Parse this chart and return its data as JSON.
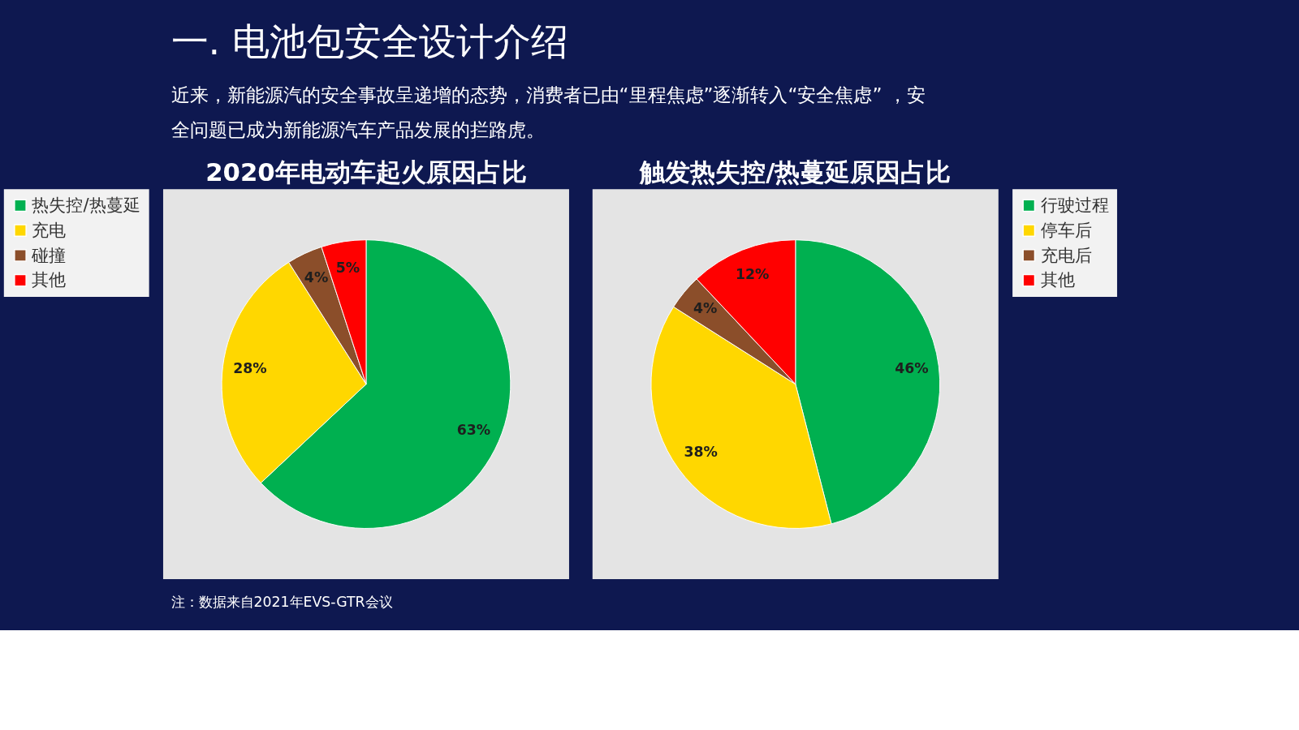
{
  "chart_data": [
    {
      "type": "pie",
      "title": "2020年电动车起火原因占比",
      "categories": [
        "热失控/热蔓延",
        "充电",
        "碰撞",
        "其他"
      ],
      "values": [
        63,
        28,
        4,
        5
      ],
      "colors": [
        "#00b050",
        "#ffd700",
        "#8b4e2a",
        "#ff0000"
      ],
      "value_labels": [
        "63%",
        "28%",
        "4%",
        "5%"
      ],
      "legend": "left",
      "annotations": [
        "一. 电池包安全设计介绍",
        "近来，新能源汽的安全事故呈递增的态势，消费者已由“里程焦虑”逐渐转入“安全焦虑”  ，安",
        "全问题已成为新能源汽车产品发展的拦路虎。"
      ]
    },
    {
      "type": "pie",
      "title": "触发热失控/热蔓延原因占比",
      "categories": [
        "行驶过程",
        "停车后",
        "充电后",
        "其他"
      ],
      "values": [
        46,
        38,
        4,
        12
      ],
      "colors": [
        "#00b050",
        "#ffd700",
        "#8b4e2a",
        "#ff0000"
      ],
      "value_labels": [
        "46%",
        "38%",
        "4%",
        "12%"
      ],
      "legend": "right",
      "annotations": [
        "注：数据来自2021年EVS-GTR会议"
      ]
    }
  ]
}
